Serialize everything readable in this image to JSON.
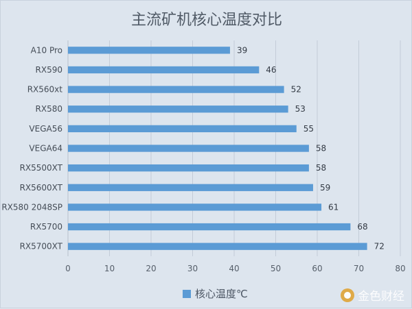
{
  "chart_data": {
    "type": "bar",
    "orientation": "horizontal",
    "title": "主流矿机核心温度对比",
    "categories": [
      "A10 Pro",
      "RX590",
      "RX560xt",
      "RX580",
      "VEGA56",
      "VEGA64",
      "RX5500XT",
      "RX5600XT",
      "RX580 2048SP",
      "RX5700",
      "RX5700XT"
    ],
    "series": [
      {
        "name": "核心温度℃",
        "values": [
          39,
          46,
          52,
          53,
          55,
          58,
          58,
          59,
          61,
          68,
          72
        ],
        "color": "#5b9bd5"
      }
    ],
    "xlim": [
      0,
      80
    ],
    "xticks": [
      0,
      10,
      20,
      30,
      40,
      50,
      60,
      70,
      80
    ],
    "grid": true,
    "data_labels": true,
    "legend_position": "bottom"
  },
  "watermark": {
    "text": "金色财经",
    "icon": "golden-coin-logo-icon"
  },
  "colors": {
    "background": "#dde5ee",
    "bar": "#5b9bd5",
    "grid": "#c3ccd8"
  }
}
